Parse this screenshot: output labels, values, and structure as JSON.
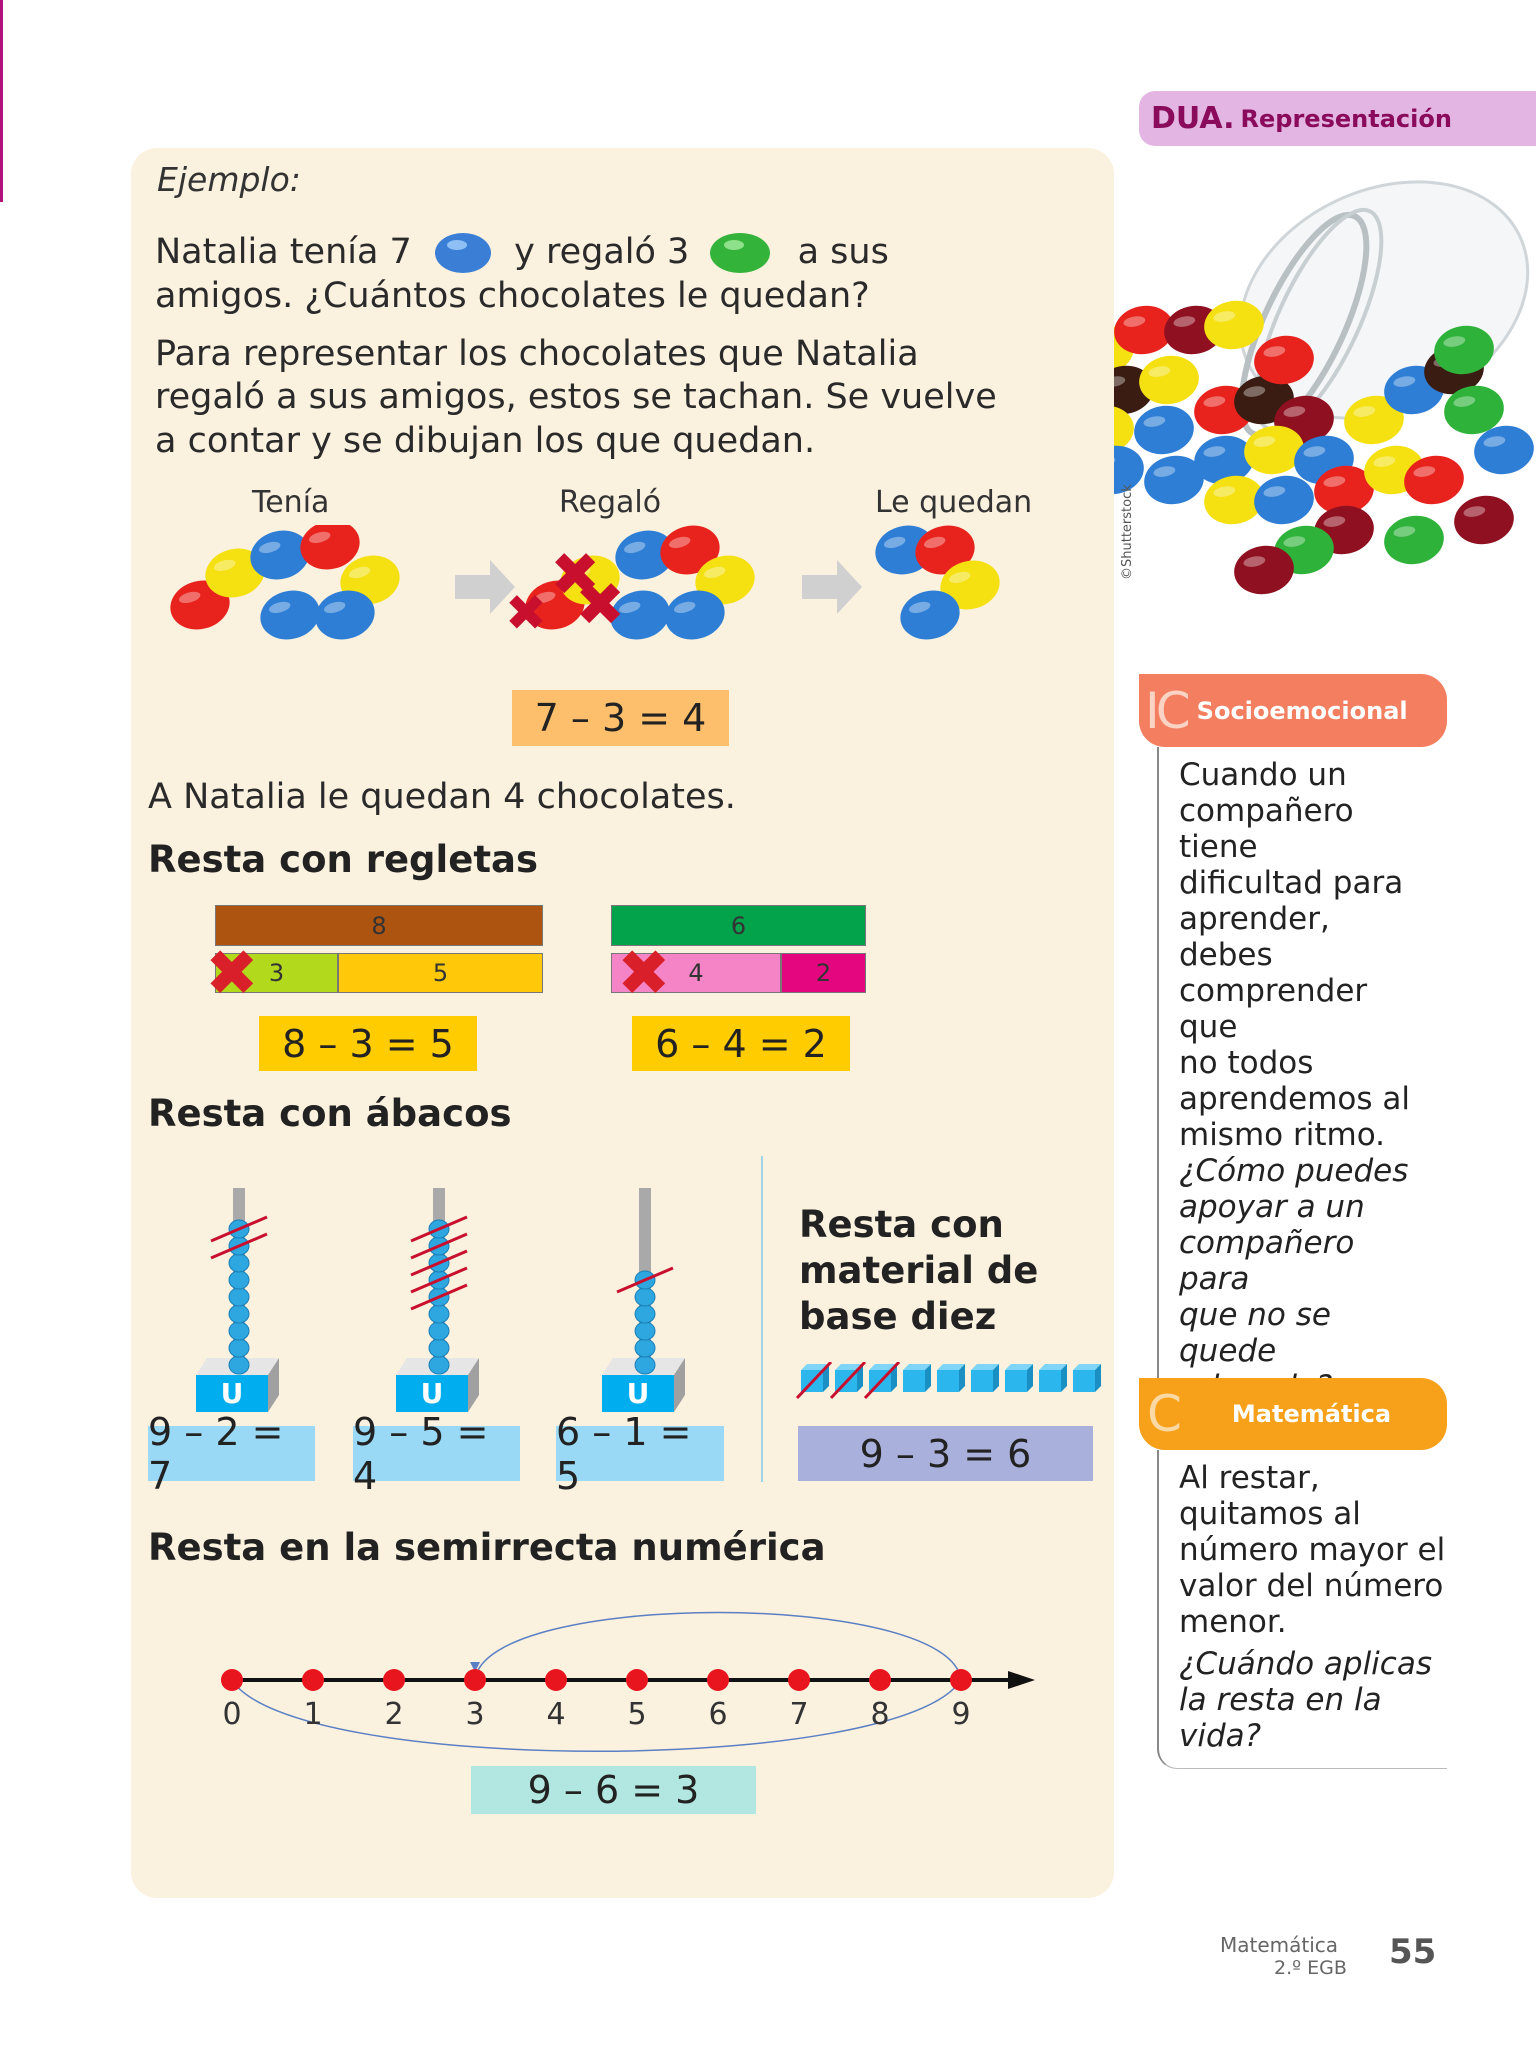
{
  "dua": {
    "prefix": "DUA.",
    "label": "Representación"
  },
  "photo_credit": "©Shutterstock",
  "example": {
    "heading": "Ejemplo:",
    "line1_a": "Natalia tenía 7",
    "line1_b": "y regaló 3",
    "line1_c": "a sus",
    "line2": "amigos. ¿Cuántos chocolates le quedan?",
    "para": [
      "Para representar los chocolates que Natalia",
      "regaló a sus amigos, estos se tachan. Se vuelve",
      "a contar y se dibujan los que quedan."
    ],
    "labels": [
      "Tenía",
      "Regaló",
      "Le quedan"
    ],
    "equation": "7 – 3 = 4",
    "answer": "A Natalia le quedan 4 chocolates."
  },
  "regletas": {
    "title": "Resta con regletas",
    "left": {
      "top": "8",
      "a": "3",
      "b": "5",
      "equation": "8 – 3 = 5"
    },
    "right": {
      "top": "6",
      "a": "4",
      "b": "2",
      "equation": "6 – 4 = 2"
    }
  },
  "abacos": {
    "title": "Resta con ábacos",
    "unit_label": "U",
    "items": [
      {
        "beads": 9,
        "crossed": 2,
        "equation": "9 – 2 = 7"
      },
      {
        "beads": 9,
        "crossed": 5,
        "equation": "9 – 5 = 4"
      },
      {
        "beads": 6,
        "crossed": 1,
        "equation": "6 – 1 = 5"
      }
    ]
  },
  "base_diez": {
    "title": [
      "Resta con",
      "material de",
      "base diez"
    ],
    "cubes": 9,
    "crossed": 3,
    "equation": "9 – 3 = 6"
  },
  "semirrecta": {
    "title": "Resta en la semirrecta numérica",
    "ticks": [
      "0",
      "1",
      "2",
      "3",
      "4",
      "5",
      "6",
      "7",
      "8",
      "9"
    ],
    "jump_from": 9,
    "jump_to": 3,
    "equation": "9 – 6 = 3"
  },
  "socio": {
    "title": "Socioemocional",
    "body": [
      "Cuando un",
      "compañero tiene",
      "dificultad para",
      "aprender, debes",
      "comprender que",
      "no todos",
      "aprendemos al",
      "mismo ritmo."
    ],
    "question": [
      "¿Cómo puedes",
      "apoyar a un",
      "compañero para",
      "que no se quede",
      "relegado?"
    ]
  },
  "mate": {
    "title": "Matemática",
    "body": [
      "Al restar,",
      "quitamos al",
      "número mayor el",
      "valor del número",
      "menor."
    ],
    "question": [
      "¿Cuándo aplicas",
      "la resta en la",
      "vida?"
    ]
  },
  "footer": {
    "subject": "Matemática",
    "grade": "2.º EGB",
    "page": "55"
  },
  "colors": {
    "panel": "#fbf1df",
    "dua": "#e2b5e2",
    "dua_text": "#8a0a5c",
    "socio": "#f47e60",
    "mate": "#f7a11a",
    "eq_orange": "#fdbf6c",
    "eq_yellow": "#ffcc00",
    "eq_blue": "#99d9f5",
    "eq_purple": "#aab0dc",
    "eq_teal": "#b2e6e0"
  }
}
